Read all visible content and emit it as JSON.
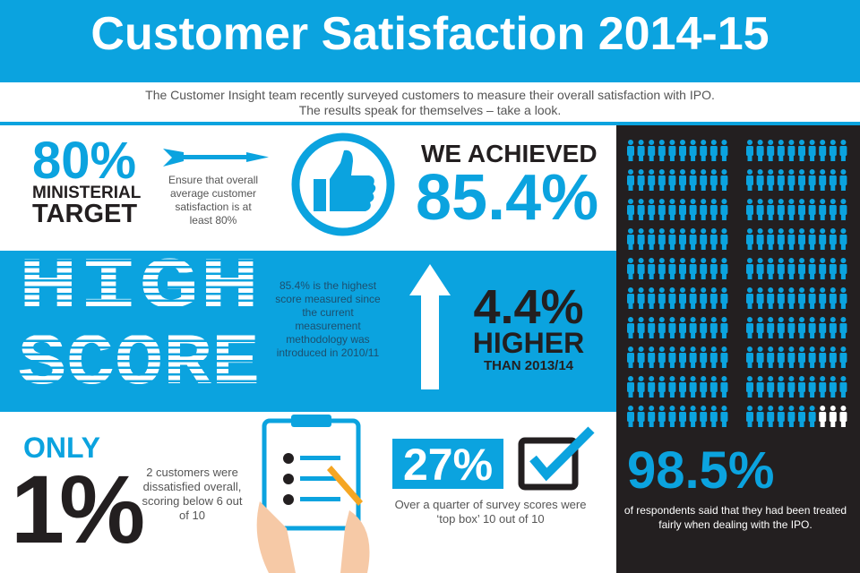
{
  "header": {
    "title": "Customer Satisfaction 2014-15",
    "intro": [
      "The Customer Insight team recently surveyed customers to measure their overall satisfaction with IPO.",
      "The results speak for themselves – take a look."
    ]
  },
  "target": {
    "value": "80%",
    "label_1": "MINISTERIAL",
    "label_2": "TARGET",
    "text": "Ensure that overall average customer satisfaction is at least 80%"
  },
  "achieved": {
    "label": "WE ACHIEVED",
    "value": "85.4%"
  },
  "high_score": {
    "title_1": "HIGH",
    "title_2": "SCORE",
    "text": "85.4% is the highest score measured since the current measurement methodology was introduced in 2010/11",
    "value": "4.4%",
    "label_1": "HIGHER",
    "label_2": "THAN 2013/14"
  },
  "dissatisfied": {
    "label": "ONLY",
    "value": "1%",
    "text": "2 customers were dissatisfied overall, scoring below 6 out of 10"
  },
  "top_box": {
    "value": "27%",
    "text": "Over a quarter of survey scores were ‘top box’ 10 out of 10"
  },
  "fairness": {
    "value": "98.5%",
    "text": "of respondents said that they had been treated fairly when dealing with the IPO."
  }
}
